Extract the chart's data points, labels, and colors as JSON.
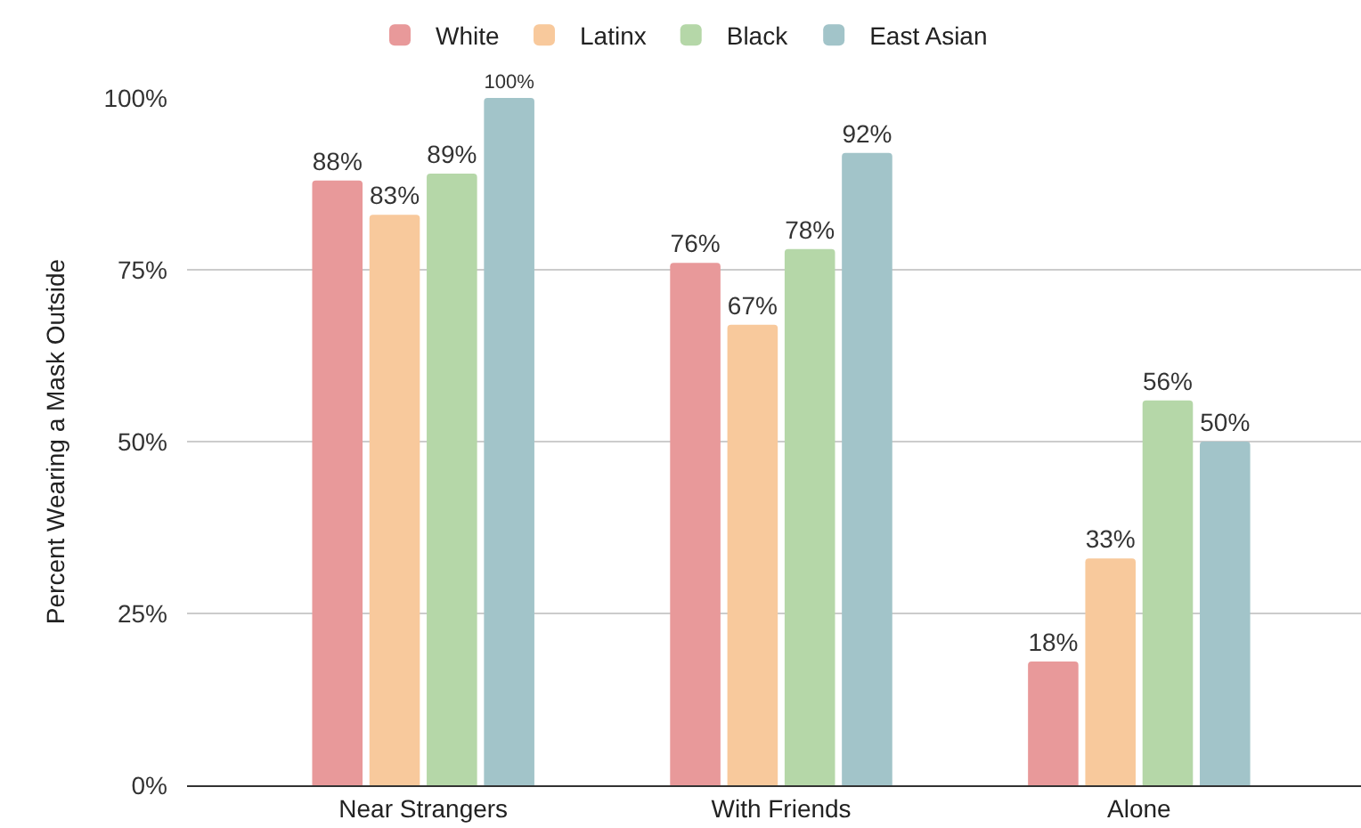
{
  "chart_data": {
    "type": "bar",
    "ylabel": "Percent Wearing a Mask Outside",
    "categories": [
      "Near Strangers",
      "With Friends",
      "Alone"
    ],
    "series": [
      {
        "name": "White",
        "color": "#e8999a",
        "values": [
          88,
          76,
          18
        ],
        "value_labels": [
          "88%",
          "76%",
          "18%"
        ]
      },
      {
        "name": "Latinx",
        "color": "#f8c99c",
        "values": [
          83,
          67,
          33
        ],
        "value_labels": [
          "83%",
          "67%",
          "33%"
        ]
      },
      {
        "name": "Black",
        "color": "#b5d7a8",
        "values": [
          89,
          78,
          56
        ],
        "value_labels": [
          "89%",
          "78%",
          "56%"
        ]
      },
      {
        "name": "East Asian",
        "color": "#a2c4c9",
        "values": [
          100,
          92,
          50
        ],
        "value_labels": [
          "100%",
          "92%",
          "50%"
        ]
      }
    ],
    "ylim": [
      0,
      100
    ],
    "yticks": [
      {
        "value": 0,
        "label": "0%"
      },
      {
        "value": 25,
        "label": "25%"
      },
      {
        "value": 50,
        "label": "50%"
      },
      {
        "value": 75,
        "label": "75%"
      },
      {
        "value": 100,
        "label": "100%"
      }
    ],
    "grid": "y",
    "legend": "top"
  }
}
